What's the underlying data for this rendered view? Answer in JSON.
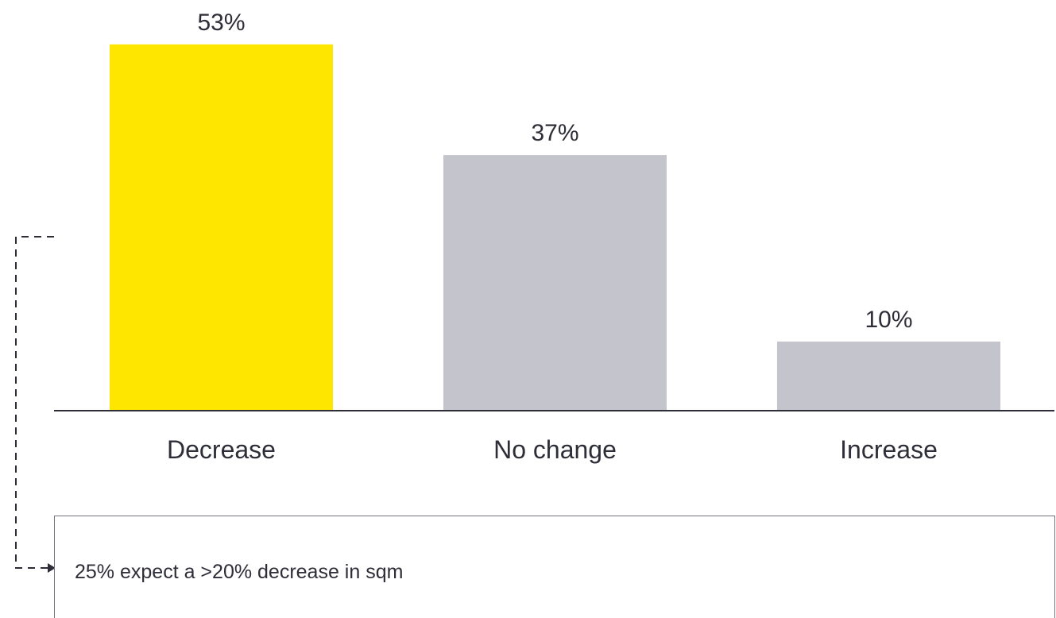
{
  "chart_data": {
    "type": "bar",
    "categories": [
      "Decrease",
      "No change",
      "Increase"
    ],
    "values": [
      53,
      37,
      10
    ],
    "value_labels": [
      "53%",
      "37%",
      "10%"
    ],
    "colors": [
      "#FFE600",
      "#C4C4CD",
      "#C4C4CD"
    ],
    "title": "",
    "xlabel": "",
    "ylabel": "",
    "grid": false,
    "axis_color": "#2e2e38"
  },
  "callout": {
    "text": "25% expect a >20% decrease in sqm",
    "connector_color": "#2e2e38"
  }
}
